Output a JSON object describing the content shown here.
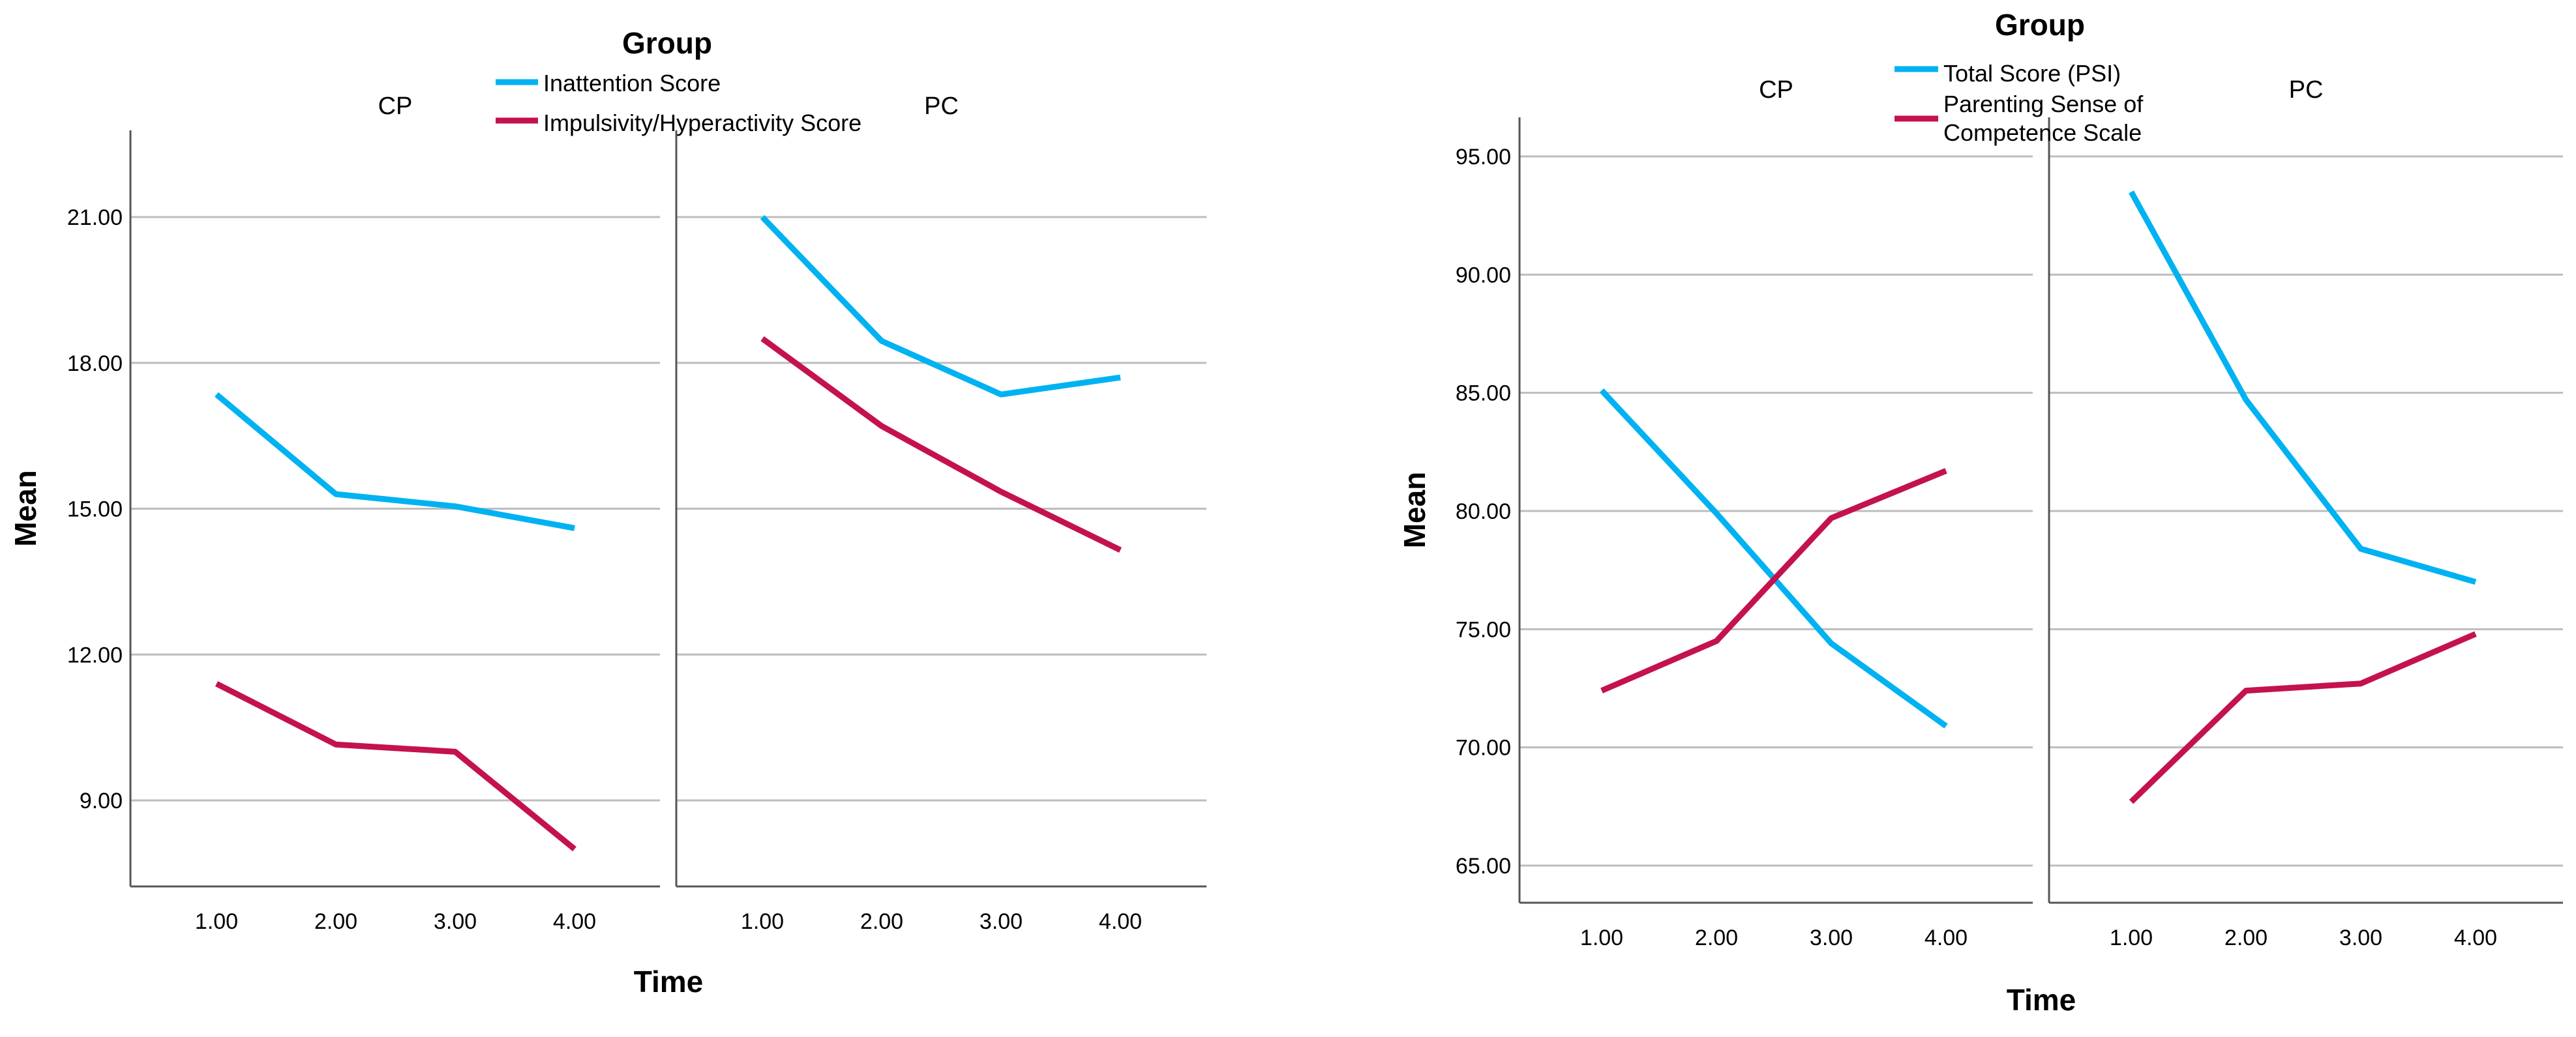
{
  "colors": {
    "series_a": "#00B2F2",
    "series_b": "#C4124F",
    "grid": "#BDBDBD",
    "axis": "#555555"
  },
  "chart_data": [
    {
      "type": "line",
      "legend_title": "Group",
      "xlabel": "Time",
      "ylabel": "Mean",
      "ylim": [
        7.5,
        23.0
      ],
      "yticks": [
        "9.00",
        "12.00",
        "15.00",
        "18.00",
        "21.00"
      ],
      "x": [
        "1.00",
        "2.00",
        "3.00",
        "4.00"
      ],
      "facets": [
        {
          "label": "CP",
          "series": [
            {
              "name": "Inattention Score",
              "values": [
                17.35,
                15.3,
                15.05,
                14.6
              ]
            },
            {
              "name": "Impulsivity/Hyperactivity Score",
              "values": [
                11.4,
                10.15,
                10.0,
                8.0
              ]
            }
          ]
        },
        {
          "label": "PC",
          "series": [
            {
              "name": "Inattention Score",
              "values": [
                21.0,
                18.45,
                17.35,
                17.7
              ]
            },
            {
              "name": "Impulsivity/Hyperactivity Score",
              "values": [
                18.5,
                16.7,
                15.35,
                14.15
              ]
            }
          ]
        }
      ],
      "legend": [
        "Inattention Score",
        "Impulsivity/Hyperactivity Score"
      ]
    },
    {
      "type": "line",
      "legend_title": "Group",
      "xlabel": "Time",
      "ylabel": "Mean",
      "ylim": [
        63.5,
        97.0
      ],
      "yticks": [
        "65.00",
        "70.00",
        "75.00",
        "80.00",
        "85.00",
        "90.00",
        "95.00"
      ],
      "x": [
        "1.00",
        "2.00",
        "3.00",
        "4.00"
      ],
      "facets": [
        {
          "label": "CP",
          "series": [
            {
              "name": "Total Score (PSI)",
              "values": [
                85.1,
                79.9,
                74.4,
                70.9
              ]
            },
            {
              "name": "Parenting Sense of Competence Scale",
              "values": [
                72.4,
                74.5,
                79.7,
                81.7
              ]
            }
          ]
        },
        {
          "label": "PC",
          "series": [
            {
              "name": "Total Score (PSI)",
              "values": [
                93.5,
                84.7,
                78.4,
                77.0
              ]
            },
            {
              "name": "Parenting Sense of Competence Scale",
              "values": [
                67.7,
                72.4,
                72.7,
                74.8
              ]
            }
          ]
        }
      ],
      "legend": [
        "Total Score (PSI)",
        "Parenting Sense of Competence Scale"
      ],
      "legend_wrapped": [
        [
          "Total Score (PSI)"
        ],
        [
          "Parenting Sense of",
          "Competence Scale"
        ]
      ]
    }
  ]
}
